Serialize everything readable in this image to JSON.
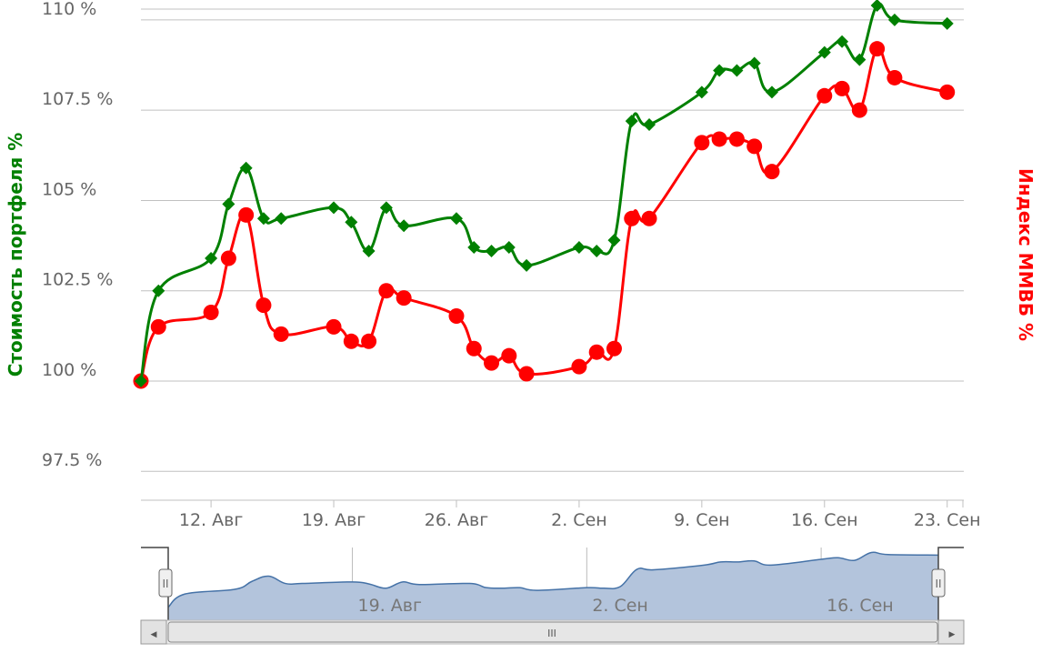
{
  "chart_data": {
    "type": "line",
    "y_left_label": "Стоимость портфеля %",
    "y_right_label": "Индекс ММВБ %",
    "y_range": [
      96.7,
      110.3
    ],
    "y_ticks": [
      97.5,
      100,
      102.5,
      105,
      107.5,
      110
    ],
    "y_tick_labels": [
      "97.5 %",
      "100 %",
      "102.5 %",
      "105 %",
      "107.5 %",
      "110 %"
    ],
    "x_range": [
      "2013-08-08",
      "2013-09-24"
    ],
    "x_ticks": [
      "2013-08-12",
      "2013-08-19",
      "2013-08-26",
      "2013-09-02",
      "2013-09-09",
      "2013-09-16",
      "2013-09-23"
    ],
    "x_tick_labels": [
      "12. Авг",
      "19. Авг",
      "26. Авг",
      "2. Сен",
      "9. Сен",
      "16. Сен",
      "23. Сен"
    ],
    "colors": {
      "portfolio": "#008000",
      "index": "#ff0000",
      "grid": "#c0c0c0",
      "navigator_fill": "#b3c4dc",
      "navigator_line": "#4572a7"
    },
    "series": [
      {
        "key": "portfolio",
        "marker": "diamond",
        "points": [
          [
            "2013-08-08",
            100.0
          ],
          [
            "2013-08-09",
            102.5
          ],
          [
            "2013-08-12",
            103.4
          ],
          [
            "2013-08-13",
            104.9
          ],
          [
            "2013-08-14",
            105.9
          ],
          [
            "2013-08-15",
            104.5
          ],
          [
            "2013-08-16",
            104.5
          ],
          [
            "2013-08-19",
            104.8
          ],
          [
            "2013-08-20",
            104.4
          ],
          [
            "2013-08-21",
            103.6
          ],
          [
            "2013-08-22",
            104.8
          ],
          [
            "2013-08-23",
            104.3
          ],
          [
            "2013-08-26",
            104.5
          ],
          [
            "2013-08-27",
            103.7
          ],
          [
            "2013-08-28",
            103.6
          ],
          [
            "2013-08-29",
            103.7
          ],
          [
            "2013-08-30",
            103.2
          ],
          [
            "2013-09-02",
            103.7
          ],
          [
            "2013-09-03",
            103.6
          ],
          [
            "2013-09-04",
            103.9
          ],
          [
            "2013-09-05",
            107.2
          ],
          [
            "2013-09-06",
            107.1
          ],
          [
            "2013-09-09",
            108.0
          ],
          [
            "2013-09-10",
            108.6
          ],
          [
            "2013-09-11",
            108.6
          ],
          [
            "2013-09-12",
            108.8
          ],
          [
            "2013-09-13",
            108.0
          ],
          [
            "2013-09-16",
            109.1
          ],
          [
            "2013-09-17",
            109.4
          ],
          [
            "2013-09-18",
            108.9
          ],
          [
            "2013-09-19",
            110.4
          ],
          [
            "2013-09-20",
            110.0
          ],
          [
            "2013-09-23",
            109.9
          ]
        ]
      },
      {
        "key": "index",
        "marker": "circle",
        "points": [
          [
            "2013-08-08",
            100.0
          ],
          [
            "2013-08-09",
            101.5
          ],
          [
            "2013-08-12",
            101.9
          ],
          [
            "2013-08-13",
            103.4
          ],
          [
            "2013-08-14",
            104.6
          ],
          [
            "2013-08-15",
            102.1
          ],
          [
            "2013-08-16",
            101.3
          ],
          [
            "2013-08-19",
            101.5
          ],
          [
            "2013-08-20",
            101.1
          ],
          [
            "2013-08-21",
            101.1
          ],
          [
            "2013-08-22",
            102.5
          ],
          [
            "2013-08-23",
            102.3
          ],
          [
            "2013-08-26",
            101.8
          ],
          [
            "2013-08-27",
            100.9
          ],
          [
            "2013-08-28",
            100.5
          ],
          [
            "2013-08-29",
            100.7
          ],
          [
            "2013-08-30",
            100.2
          ],
          [
            "2013-09-02",
            100.4
          ],
          [
            "2013-09-03",
            100.8
          ],
          [
            "2013-09-04",
            100.9
          ],
          [
            "2013-09-05",
            104.5
          ],
          [
            "2013-09-06",
            104.5
          ],
          [
            "2013-09-09",
            106.6
          ],
          [
            "2013-09-10",
            106.7
          ],
          [
            "2013-09-11",
            106.7
          ],
          [
            "2013-09-12",
            106.5
          ],
          [
            "2013-09-13",
            105.8
          ],
          [
            "2013-09-16",
            107.9
          ],
          [
            "2013-09-17",
            108.1
          ],
          [
            "2013-09-18",
            107.5
          ],
          [
            "2013-09-19",
            109.2
          ],
          [
            "2013-09-20",
            108.4
          ],
          [
            "2013-09-23",
            108.0
          ]
        ]
      }
    ],
    "grid": true,
    "legend": "none"
  },
  "navigator": {
    "tick_labels": [
      "19. Авг",
      "2. Сен",
      "16. Сен"
    ],
    "tick_dates": [
      "2013-08-19",
      "2013-09-02",
      "2013-09-16"
    ],
    "scroll_grip": "III",
    "left_arrow": "◀",
    "right_arrow": "▶",
    "handle_grip": "II"
  }
}
